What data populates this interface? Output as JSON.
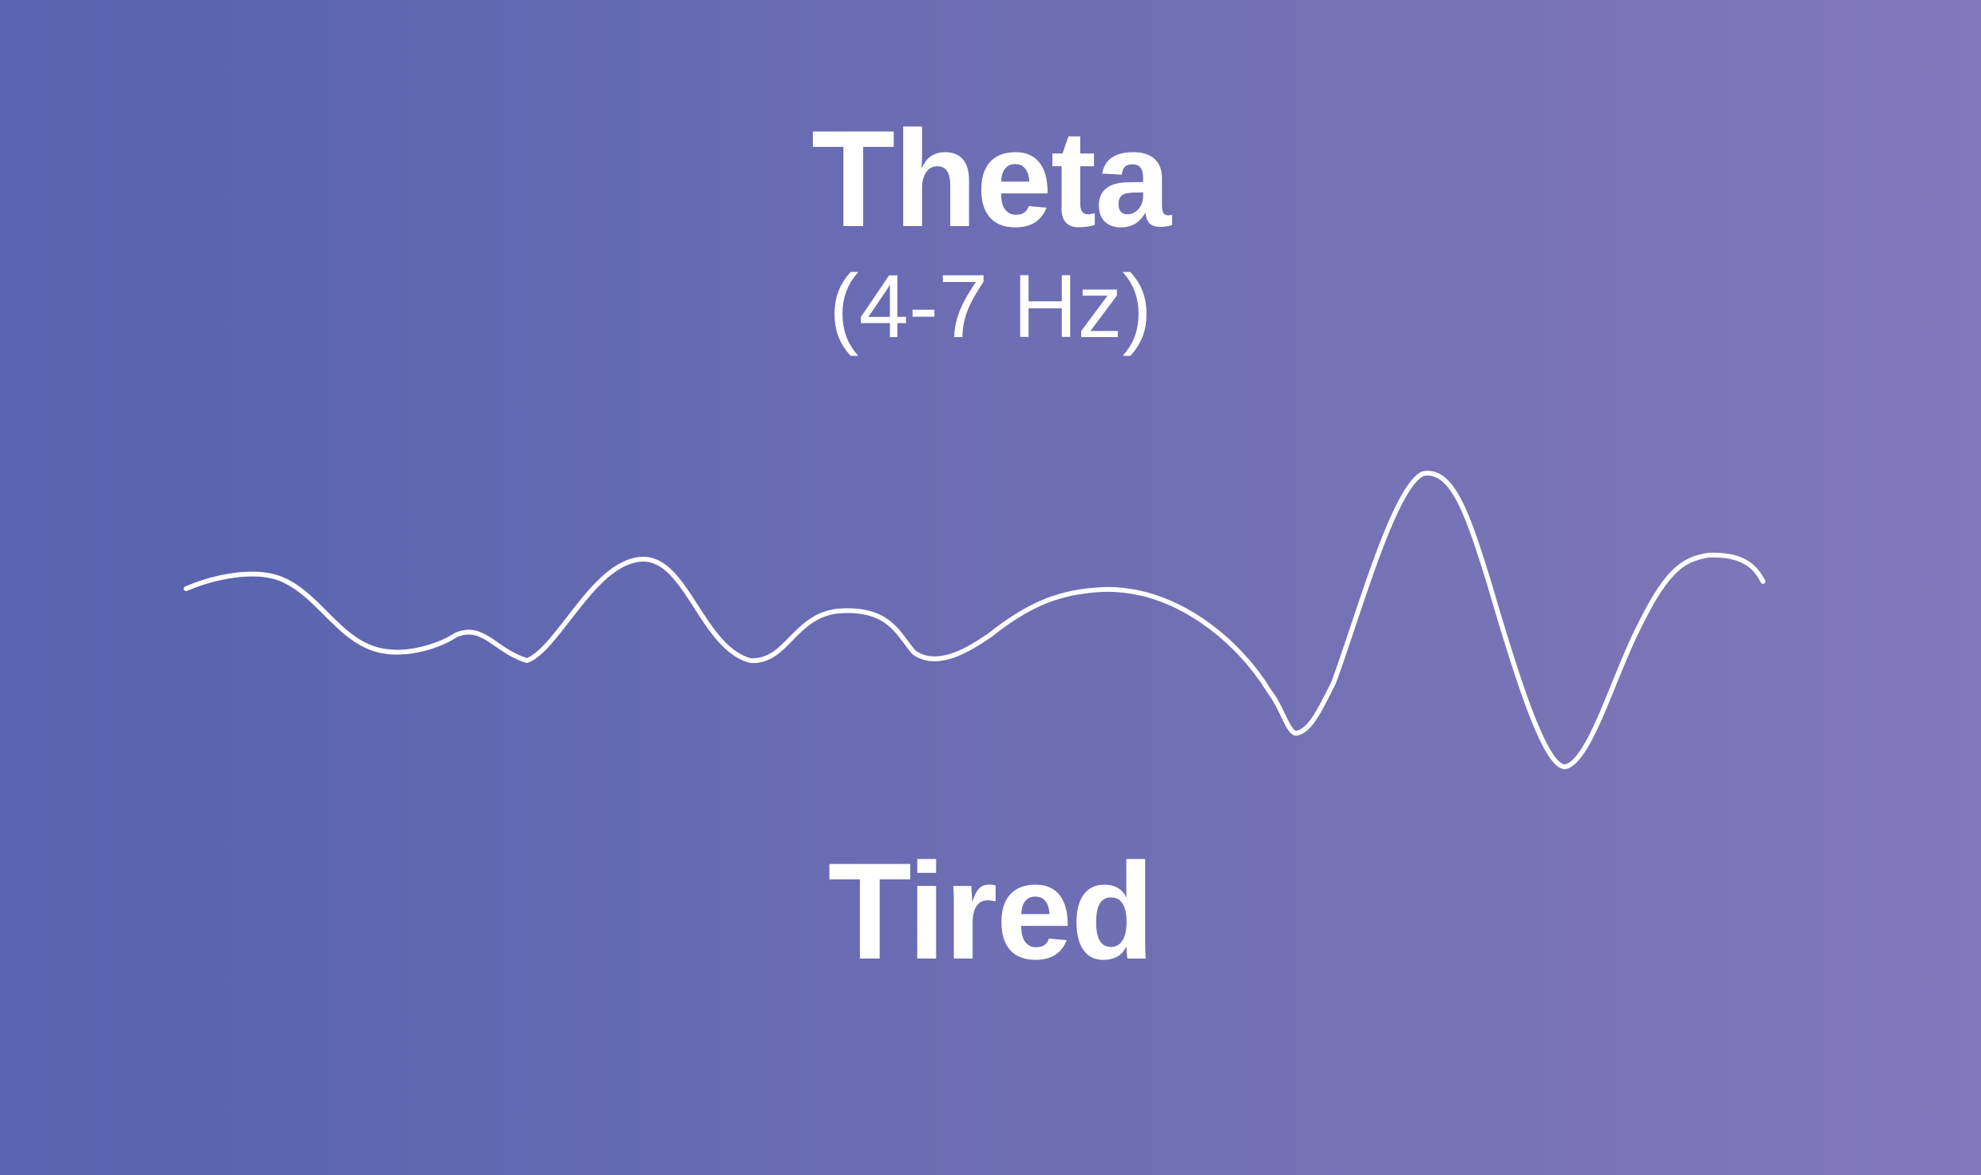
{
  "colors": {
    "gradient_start": "#5663ae",
    "gradient_end": "#8378b9",
    "text": "#ffffff",
    "wave_stroke": "#ffffff"
  },
  "wave": {
    "name": "Theta",
    "frequency_range": "(4-7 Hz)",
    "state": "Tired"
  }
}
